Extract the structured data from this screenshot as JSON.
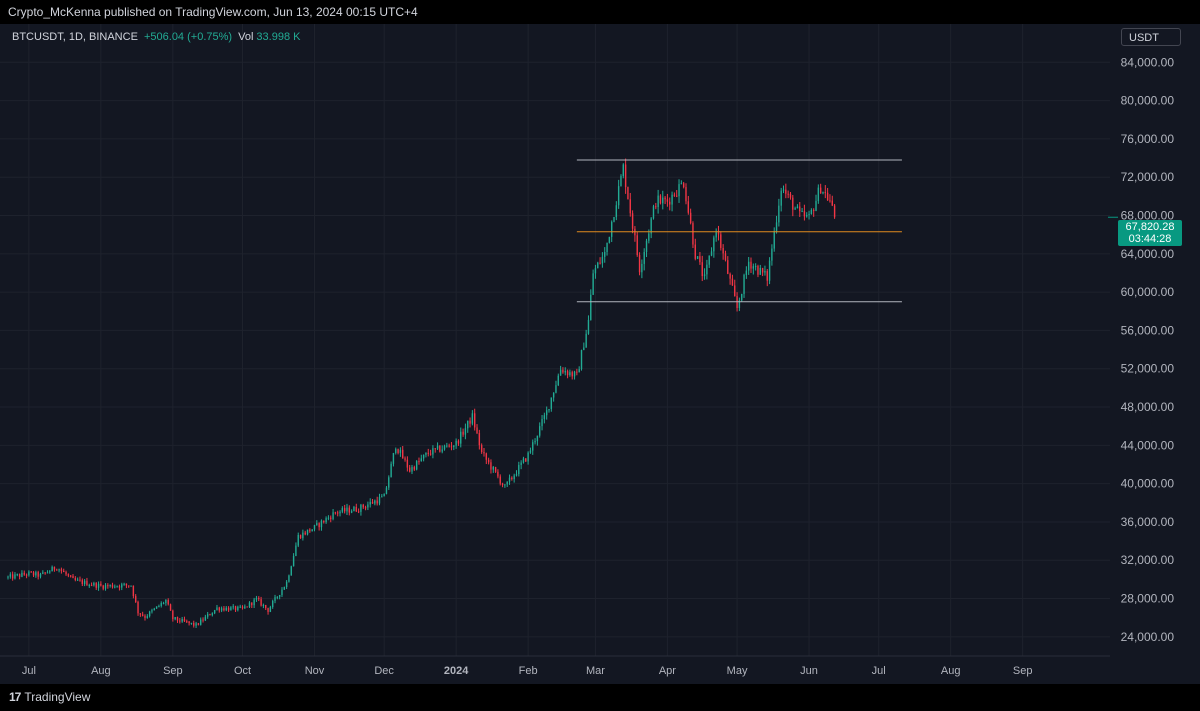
{
  "header": {
    "publisher_line": "Crypto_McKenna published on TradingView.com, Jun 13, 2024 00:15 UTC+4"
  },
  "legend": {
    "symbol": "BTCUSDT, 1D, BINANCE",
    "change": "+506.04 (+0.75%)",
    "vol_label": "Vol",
    "vol_value": "33.998 K"
  },
  "currency": "USDT",
  "price_badge": {
    "price": "67,820.28",
    "countdown": "03:44:28"
  },
  "footer": {
    "brand": "TradingView",
    "logo_mark": "17"
  },
  "colors": {
    "up": "#22ab94",
    "down": "#f23645",
    "background": "#131722",
    "grid": "#1e222d",
    "range_lines": "#b2b5be",
    "mid_line": "#e08a1e",
    "price_badge": "#089981"
  },
  "chart_data": {
    "type": "candlestick",
    "symbol": "BTCUSDT",
    "interval": "1D",
    "exchange": "BINANCE",
    "ylim": [
      22000,
      88000
    ],
    "y_ticks": [
      "24,000.00",
      "28,000.00",
      "32,000.00",
      "36,000.00",
      "40,000.00",
      "44,000.00",
      "48,000.00",
      "52,000.00",
      "56,000.00",
      "60,000.00",
      "64,000.00",
      "68,000.00",
      "72,000.00",
      "76,000.00",
      "80,000.00",
      "84,000.00"
    ],
    "y_tick_values": [
      24000,
      28000,
      32000,
      36000,
      40000,
      44000,
      48000,
      52000,
      56000,
      60000,
      64000,
      68000,
      72000,
      76000,
      80000,
      84000
    ],
    "x_ticks": [
      {
        "label": "Jul",
        "date": "2023-07-01"
      },
      {
        "label": "Aug",
        "date": "2023-08-01"
      },
      {
        "label": "Sep",
        "date": "2023-09-01"
      },
      {
        "label": "Oct",
        "date": "2023-10-01"
      },
      {
        "label": "Nov",
        "date": "2023-11-01"
      },
      {
        "label": "Dec",
        "date": "2023-12-01"
      },
      {
        "label": "2024",
        "date": "2024-01-01",
        "bold": true
      },
      {
        "label": "Feb",
        "date": "2024-02-01"
      },
      {
        "label": "Mar",
        "date": "2024-03-01"
      },
      {
        "label": "Apr",
        "date": "2024-04-01"
      },
      {
        "label": "May",
        "date": "2024-05-01"
      },
      {
        "label": "Jun",
        "date": "2024-06-01"
      },
      {
        "label": "Jul",
        "date": "2024-07-01"
      },
      {
        "label": "Aug",
        "date": "2024-08-01"
      },
      {
        "label": "Sep",
        "date": "2024-09-01"
      }
    ],
    "x_range": [
      "2023-06-22",
      "2024-09-30"
    ],
    "close_path": [
      [
        "2023-06-22",
        30200
      ],
      [
        "2023-07-01",
        30600
      ],
      [
        "2023-07-06",
        30400
      ],
      [
        "2023-07-13",
        31300
      ],
      [
        "2023-07-20",
        29900
      ],
      [
        "2023-08-01",
        29300
      ],
      [
        "2023-08-14",
        29400
      ],
      [
        "2023-08-17",
        26600
      ],
      [
        "2023-08-20",
        26100
      ],
      [
        "2023-08-29",
        27800
      ],
      [
        "2023-09-01",
        25900
      ],
      [
        "2023-09-11",
        25200
      ],
      [
        "2023-09-20",
        27000
      ],
      [
        "2023-10-01",
        26900
      ],
      [
        "2023-10-07",
        27900
      ],
      [
        "2023-10-12",
        26800
      ],
      [
        "2023-10-20",
        29700
      ],
      [
        "2023-10-25",
        34500
      ],
      [
        "2023-11-01",
        35400
      ],
      [
        "2023-11-10",
        37000
      ],
      [
        "2023-11-20",
        37400
      ],
      [
        "2023-12-01",
        38600
      ],
      [
        "2023-12-06",
        44000
      ],
      [
        "2023-12-12",
        41400
      ],
      [
        "2023-12-20",
        43200
      ],
      [
        "2024-01-01",
        44200
      ],
      [
        "2024-01-08",
        47000
      ],
      [
        "2024-01-12",
        43200
      ],
      [
        "2024-01-22",
        39600
      ],
      [
        "2024-02-01",
        43000
      ],
      [
        "2024-02-09",
        47500
      ],
      [
        "2024-02-15",
        52000
      ],
      [
        "2024-02-22",
        51200
      ],
      [
        "2024-02-27",
        57000
      ],
      [
        "2024-02-29",
        62000
      ],
      [
        "2024-03-05",
        64000
      ],
      [
        "2024-03-13",
        73000
      ],
      [
        "2024-03-20",
        62500
      ],
      [
        "2024-03-27",
        69500
      ],
      [
        "2024-04-01",
        69500
      ],
      [
        "2024-04-08",
        71500
      ],
      [
        "2024-04-13",
        64000
      ],
      [
        "2024-04-17",
        61300
      ],
      [
        "2024-04-22",
        66700
      ],
      [
        "2024-05-01",
        58300
      ],
      [
        "2024-05-06",
        63200
      ],
      [
        "2024-05-14",
        61500
      ],
      [
        "2024-05-20",
        71000
      ],
      [
        "2024-05-28",
        68000
      ],
      [
        "2024-06-01",
        67700
      ],
      [
        "2024-06-06",
        71000
      ],
      [
        "2024-06-10",
        69500
      ],
      [
        "2024-06-12",
        67820
      ]
    ],
    "annotations": {
      "range_top": {
        "value": 73800,
        "from": "2024-02-22",
        "to": "2024-07-11"
      },
      "range_mid": {
        "value": 66300,
        "from": "2024-02-22",
        "to": "2024-07-11"
      },
      "range_bottom": {
        "value": 59000,
        "from": "2024-02-22",
        "to": "2024-07-11"
      }
    },
    "last_price": 67820.28,
    "grid": true
  }
}
